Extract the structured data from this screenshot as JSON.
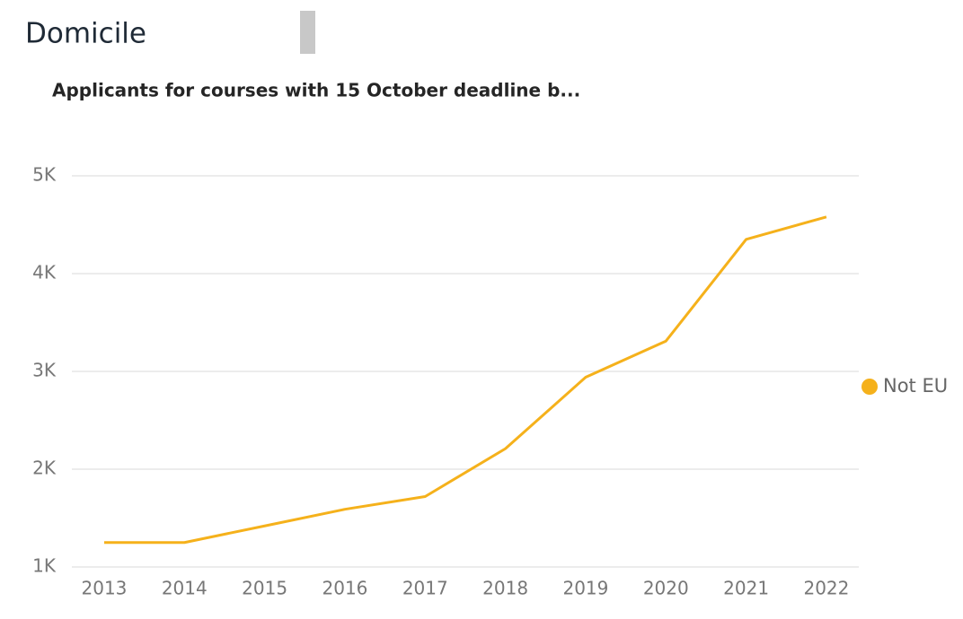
{
  "header": {
    "title": "Domicile"
  },
  "chart_data": {
    "type": "line",
    "title": "Applicants for courses with 15 October deadline b...",
    "categories": [
      "2013",
      "2014",
      "2015",
      "2016",
      "2017",
      "2018",
      "2019",
      "2020",
      "2021",
      "2022"
    ],
    "series": [
      {
        "name": "Not EU",
        "color": "#f5b11b",
        "values": [
          1250,
          1250,
          1420,
          1590,
          1720,
          2210,
          2940,
          3310,
          4350,
          4580
        ]
      }
    ],
    "ylim": [
      1000,
      5000
    ],
    "yticks": [
      {
        "value": 1000,
        "label": "1K"
      },
      {
        "value": 2000,
        "label": "2K"
      },
      {
        "value": 3000,
        "label": "3K"
      },
      {
        "value": 4000,
        "label": "4K"
      },
      {
        "value": 5000,
        "label": "5K"
      }
    ],
    "grid": true,
    "legend": "right"
  }
}
